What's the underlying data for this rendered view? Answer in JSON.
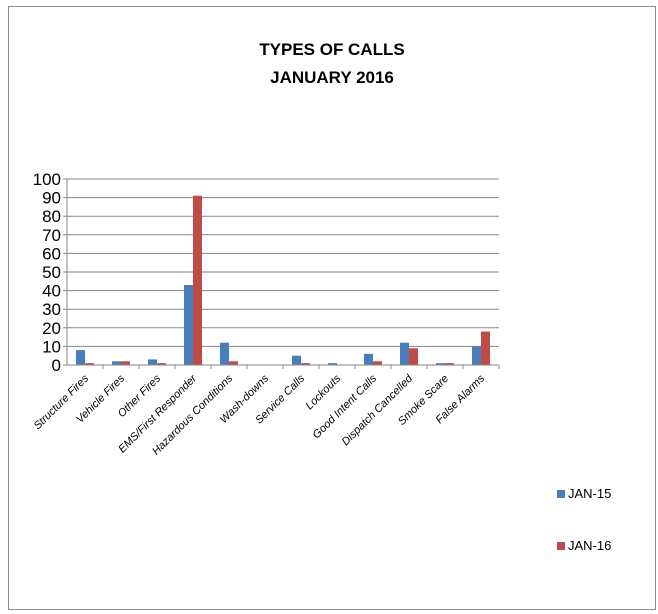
{
  "chart_data": {
    "type": "bar",
    "title": "TYPES OF CALLS",
    "subtitle": "JANUARY 2016",
    "xlabel": "",
    "ylabel": "",
    "ylim": [
      0,
      100
    ],
    "yticks": [
      0,
      10,
      20,
      30,
      40,
      50,
      60,
      70,
      80,
      90,
      100
    ],
    "grid": true,
    "legend_position": "right",
    "categories": [
      "Structure Fires",
      "Vehicle Fires",
      "Other Fires",
      "EMS/First Responder",
      "Hazardous Conditions",
      "Wash-downs",
      "Service Calls",
      "Lockouts",
      "Good Intent Calls",
      "Dispatch Cancelled",
      "Smoke Scare",
      "False Alarms"
    ],
    "series": [
      {
        "name": "JAN-15",
        "color": "#4a7ebb",
        "values": [
          8,
          2,
          3,
          43,
          12,
          0,
          5,
          1,
          6,
          12,
          1,
          10
        ]
      },
      {
        "name": "JAN-16",
        "color": "#be4b48",
        "values": [
          1,
          2,
          1,
          91,
          2,
          0,
          1,
          0,
          2,
          9,
          1,
          18
        ]
      }
    ]
  }
}
